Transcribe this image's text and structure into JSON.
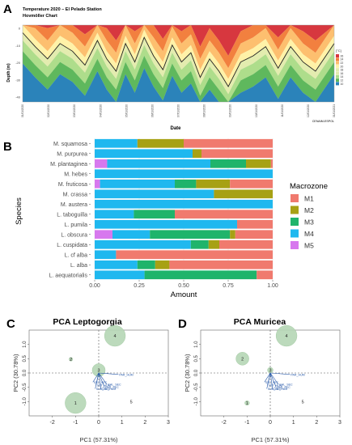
{
  "panel_letters": [
    "A",
    "B",
    "C",
    "D"
  ],
  "colors": {
    "m1": "#f07a6e",
    "m2": "#a7a114",
    "m3": "#1fb46b",
    "m4": "#1fb8ef",
    "m5": "#d778ee",
    "hov_bands": [
      "#d7373f",
      "#f2803f",
      "#fdbf6f",
      "#fff2a8",
      "#e3ecaf",
      "#aedd8b",
      "#5fb85d",
      "#2b83ba"
    ],
    "pca_circle": "#b5d7b5",
    "pca_arrow": "#2356a8"
  },
  "chart_data": [
    {
      "type": "heatmap",
      "panel": "A",
      "title": "Temperature 2020 – El Pelado Station",
      "subtitle": "Hovmöller Chart",
      "xlabel": "Date",
      "ylabel": "Depth (m)",
      "legend_title": "[°C]",
      "legend_values": [
        "26",
        "24",
        "22",
        "20",
        "18",
        "16",
        "14",
        "12",
        "10"
      ],
      "ylim": [
        -50,
        0
      ],
      "y_ticks": [
        "0",
        "-10",
        "-20",
        "-30",
        "-40"
      ],
      "x_ticks": [
        "01/01/2020",
        "02/01/2020",
        "03/01/2020",
        "04/01/2020",
        "05/01/2020",
        "06/01/2020",
        "07/01/2020",
        "08/01/2020",
        "09/01/2020",
        "10/01/2020",
        "11/01/2020",
        "12/01/2020",
        "01/01/2021"
      ],
      "x_fraction": [
        0,
        0.04,
        0.08,
        0.12,
        0.16,
        0.2,
        0.24,
        0.27,
        0.3,
        0.33,
        0.36,
        0.39,
        0.42,
        0.45,
        0.48,
        0.51,
        0.54,
        0.57,
        0.6,
        0.63,
        0.66,
        0.7,
        0.74,
        0.78,
        0.82,
        0.86,
        0.9,
        0.94,
        1.0
      ],
      "thermocline_depth": [
        -5,
        -14,
        -22,
        -12,
        -17,
        -26,
        -10,
        -22,
        -30,
        -12,
        -24,
        -8,
        -20,
        -29,
        -13,
        -24,
        -18,
        -34,
        -22,
        -30,
        -40,
        -24,
        -20,
        -14,
        -28,
        -14,
        -24,
        -30,
        -12
      ],
      "credit": "CENAIM-ESPOL"
    },
    {
      "type": "bar",
      "panel": "B",
      "stacked": true,
      "orientation": "horizontal",
      "xlabel": "Amount",
      "ylabel": "Species",
      "xlim": [
        0,
        1
      ],
      "x_ticks": [
        "0.00",
        "0.25",
        "0.50",
        "0.75",
        "1.00"
      ],
      "legend_title": "Macrozone",
      "categories": [
        "M. squamosa",
        "M. purpurea",
        "M. plantaginea",
        "M. hebes",
        "M. fruticosa",
        "M. crassa",
        "M. austera",
        "L. taboguilla",
        "L. pumila",
        "L. obscura",
        "L. cuspidata",
        "L. cf alba",
        "L. alba",
        "L. aequatorialis"
      ],
      "series": [
        {
          "name": "M5",
          "values": [
            0,
            0,
            0.07,
            0,
            0.03,
            0,
            0,
            0,
            0,
            0.1,
            0,
            0,
            0,
            0
          ]
        },
        {
          "name": "M4",
          "values": [
            0.24,
            0.55,
            0.58,
            1.0,
            0.42,
            0.67,
            1.0,
            0.22,
            0.8,
            0.21,
            0.54,
            0.12,
            0.24,
            0.28
          ]
        },
        {
          "name": "M3",
          "values": [
            0,
            0,
            0.2,
            0,
            0.12,
            0,
            0,
            0.23,
            0,
            0.45,
            0.1,
            0,
            0.1,
            0.63
          ]
        },
        {
          "name": "M2",
          "values": [
            0.26,
            0.05,
            0.14,
            0,
            0.19,
            0.33,
            0,
            0,
            0,
            0.03,
            0.06,
            0,
            0.08,
            0
          ]
        },
        {
          "name": "M1",
          "values": [
            0.5,
            0.4,
            0.01,
            0,
            0.24,
            0,
            0,
            0.55,
            0.2,
            0.21,
            0.3,
            0.88,
            0.58,
            0.09
          ]
        }
      ]
    },
    {
      "type": "scatter",
      "panel": "C",
      "title": "PCA Leptogorgia",
      "xlabel": "PC1 (57.31%)",
      "ylabel": "PC2 (30.78%)",
      "xlim": [
        -3,
        3
      ],
      "ylim": [
        -1.5,
        1.5
      ],
      "x_ticks": [
        -2,
        -1,
        0,
        1,
        2,
        3
      ],
      "y_ticks": [
        1.0,
        0.5,
        0.0,
        -0.5,
        -1.0
      ],
      "points": [
        {
          "label": "4",
          "x": 0.7,
          "y": 1.3,
          "r": 0.45
        },
        {
          "label": "2",
          "x": -1.2,
          "y": 0.48,
          "r": 0.08
        },
        {
          "label": "3",
          "x": 0.0,
          "y": 0.1,
          "r": 0.28
        },
        {
          "label": "1",
          "x": -1.0,
          "y": -1.05,
          "r": 0.45
        },
        {
          "label": "5",
          "x": 1.4,
          "y": -1.0,
          "r": 0.0
        }
      ],
      "loadings": [
        {
          "label": "PAR_HUM",
          "x": 0.85,
          "y": -0.05
        },
        {
          "label": "SST_SEC",
          "x": -0.25,
          "y": -0.32
        },
        {
          "label": "SST_HUM",
          "x": -0.12,
          "y": -0.42
        },
        {
          "label": "CHL_SEC",
          "x": 0.35,
          "y": -0.4
        },
        {
          "label": "PAR_SEC",
          "x": 0.25,
          "y": -0.5
        },
        {
          "label": "SUB_SEC",
          "x": -0.15,
          "y": -0.55
        },
        {
          "label": "CHL_HUM",
          "x": 0.1,
          "y": -0.55
        }
      ]
    },
    {
      "type": "scatter",
      "panel": "D",
      "title": "PCA Muricea",
      "xlabel": "PC1 (57.31%)",
      "ylabel": "PC2 (30.78%)",
      "xlim": [
        -3,
        3
      ],
      "ylim": [
        -1.5,
        1.5
      ],
      "x_ticks": [
        -2,
        -1,
        0,
        1,
        2,
        3
      ],
      "y_ticks": [
        1.0,
        0.5,
        0.0,
        -0.5,
        -1.0
      ],
      "points": [
        {
          "label": "4",
          "x": 0.7,
          "y": 1.3,
          "r": 0.45
        },
        {
          "label": "2",
          "x": -1.2,
          "y": 0.5,
          "r": 0.28
        },
        {
          "label": "3",
          "x": 0.0,
          "y": 0.1,
          "r": 0.12
        },
        {
          "label": "1",
          "x": -1.0,
          "y": -1.05,
          "r": 0.1
        },
        {
          "label": "5",
          "x": 1.4,
          "y": -1.0,
          "r": 0.0
        }
      ],
      "loadings": [
        {
          "label": "PAR_HUM",
          "x": 0.85,
          "y": -0.05
        },
        {
          "label": "SST_SEC",
          "x": -0.25,
          "y": -0.32
        },
        {
          "label": "SST_HUM",
          "x": -0.12,
          "y": -0.42
        },
        {
          "label": "CHL_SEC",
          "x": 0.35,
          "y": -0.4
        },
        {
          "label": "PAR_SEC",
          "x": 0.25,
          "y": -0.5
        },
        {
          "label": "SUB_SEC",
          "x": -0.15,
          "y": -0.55
        },
        {
          "label": "CHL_HUM",
          "x": 0.1,
          "y": -0.55
        }
      ]
    }
  ]
}
